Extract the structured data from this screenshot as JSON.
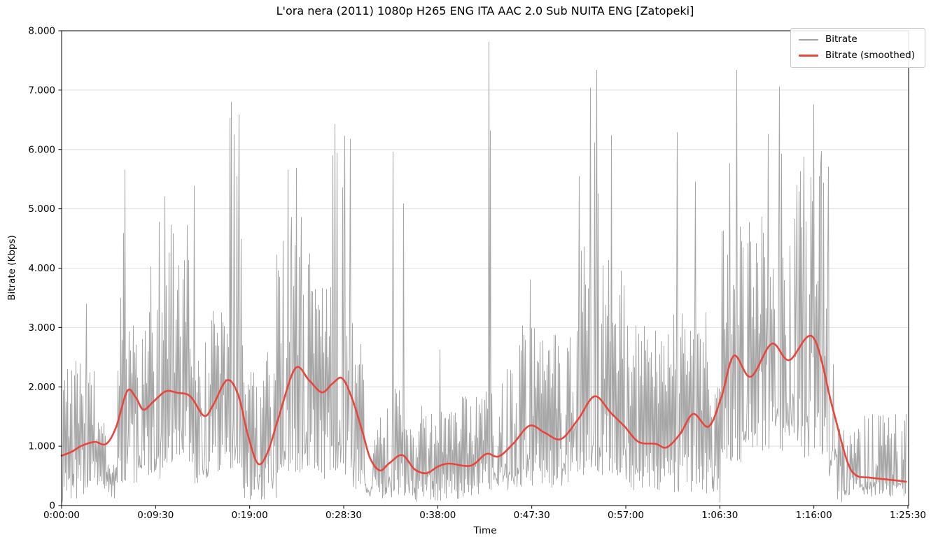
{
  "chart_data": {
    "type": "line",
    "title": "L'ora nera (2011) 1080p H265 ENG ITA AAC 2.0 Sub NUITA ENG [Zatopeki]",
    "xlabel": "Time",
    "ylabel": "Bitrate (Kbps)",
    "xlim_seconds": [
      0,
      5130
    ],
    "ylim": [
      0,
      8000
    ],
    "grid": {
      "horizontal": true,
      "vertical": false,
      "color": "#dedede"
    },
    "background": "#ffffff",
    "x_ticks": [
      {
        "seconds": 0,
        "label": "0:00:00"
      },
      {
        "seconds": 570,
        "label": "0:09:30"
      },
      {
        "seconds": 1140,
        "label": "0:19:00"
      },
      {
        "seconds": 1710,
        "label": "0:28:30"
      },
      {
        "seconds": 2280,
        "label": "0:38:00"
      },
      {
        "seconds": 2850,
        "label": "0:47:30"
      },
      {
        "seconds": 3420,
        "label": "0:57:00"
      },
      {
        "seconds": 3990,
        "label": "1:06:30"
      },
      {
        "seconds": 4560,
        "label": "1:16:00"
      },
      {
        "seconds": 5130,
        "label": "1:25:30"
      }
    ],
    "y_ticks": [
      {
        "value": 0,
        "label": "0"
      },
      {
        "value": 1000,
        "label": "1.000"
      },
      {
        "value": 2000,
        "label": "2.000"
      },
      {
        "value": 3000,
        "label": "3.000"
      },
      {
        "value": 4000,
        "label": "4.000"
      },
      {
        "value": 5000,
        "label": "5.000"
      },
      {
        "value": 6000,
        "label": "6.000"
      },
      {
        "value": 7000,
        "label": "7.000"
      },
      {
        "value": 8000,
        "label": "8.000"
      }
    ],
    "legend": {
      "position": "upper-right",
      "border_color": "#c9c9c9",
      "entries": [
        {
          "label": "Bitrate",
          "color": "#a5a5a5"
        },
        {
          "label": "Bitrate (smoothed)",
          "color": "#e8463c"
        }
      ]
    },
    "series": [
      {
        "name": "Bitrate",
        "color": "#a5a5a5",
        "line_width": 1,
        "kind": "raw-noisy",
        "envelope_windows": [
          [
            0,
            140,
            50,
            2450
          ],
          [
            140,
            200,
            250,
            2300
          ],
          [
            200,
            270,
            200,
            1400
          ],
          [
            270,
            335,
            120,
            700
          ],
          [
            335,
            480,
            350,
            3300
          ],
          [
            480,
            620,
            450,
            3300
          ],
          [
            620,
            790,
            700,
            4750
          ],
          [
            790,
            905,
            300,
            2950
          ],
          [
            905,
            1000,
            450,
            3300
          ],
          [
            1000,
            1095,
            600,
            4500
          ],
          [
            1095,
            1205,
            100,
            2300
          ],
          [
            1205,
            1300,
            100,
            2600
          ],
          [
            1300,
            1505,
            550,
            4400
          ],
          [
            1505,
            1625,
            450,
            3800
          ],
          [
            1625,
            1765,
            500,
            4800
          ],
          [
            1765,
            1845,
            200,
            3100
          ],
          [
            1845,
            1910,
            80,
            1200
          ],
          [
            1910,
            2000,
            100,
            1800
          ],
          [
            2000,
            2075,
            150,
            2000
          ],
          [
            2075,
            2165,
            60,
            1300
          ],
          [
            2165,
            2300,
            80,
            1700
          ],
          [
            2300,
            2420,
            100,
            1600
          ],
          [
            2420,
            2560,
            150,
            1900
          ],
          [
            2560,
            2640,
            200,
            2150
          ],
          [
            2640,
            2760,
            250,
            2300
          ],
          [
            2760,
            2910,
            300,
            3100
          ],
          [
            2910,
            3090,
            300,
            2900
          ],
          [
            3090,
            3420,
            500,
            4500
          ],
          [
            3420,
            3660,
            250,
            3100
          ],
          [
            3660,
            3915,
            200,
            3300
          ],
          [
            3915,
            4000,
            50,
            2000
          ],
          [
            4000,
            4185,
            600,
            4800
          ],
          [
            4185,
            4420,
            900,
            4600
          ],
          [
            4420,
            4625,
            800,
            5800
          ],
          [
            4625,
            4700,
            300,
            4200
          ],
          [
            4700,
            4825,
            30,
            1300
          ],
          [
            4825,
            5118,
            150,
            1550
          ]
        ],
        "spikes": [
          [
            150,
            3400
          ],
          [
            355,
            3500
          ],
          [
            372,
            4590
          ],
          [
            383,
            5660
          ],
          [
            540,
            4030
          ],
          [
            590,
            4780
          ],
          [
            622,
            5210
          ],
          [
            663,
            4730
          ],
          [
            710,
            4050
          ],
          [
            800,
            5390
          ],
          [
            1018,
            6530
          ],
          [
            1026,
            6800
          ],
          [
            1042,
            6250
          ],
          [
            1062,
            5550
          ],
          [
            1074,
            6590
          ],
          [
            1310,
            3960
          ],
          [
            1342,
            4460
          ],
          [
            1372,
            5660
          ],
          [
            1392,
            4860
          ],
          [
            1422,
            5690
          ],
          [
            1452,
            4860
          ],
          [
            1492,
            4060
          ],
          [
            1640,
            5900
          ],
          [
            1656,
            6430
          ],
          [
            1668,
            5940
          ],
          [
            1702,
            5360
          ],
          [
            1714,
            6230
          ],
          [
            1747,
            6180
          ],
          [
            2007,
            5960
          ],
          [
            2070,
            5090
          ],
          [
            2290,
            2630
          ],
          [
            2590,
            7810
          ],
          [
            2597,
            6320
          ],
          [
            2838,
            3810
          ],
          [
            3134,
            5550
          ],
          [
            3202,
            7040
          ],
          [
            3227,
            6120
          ],
          [
            3240,
            7340
          ],
          [
            3250,
            5260
          ],
          [
            3333,
            6240
          ],
          [
            3728,
            6290
          ],
          [
            3838,
            5460
          ],
          [
            4050,
            5770
          ],
          [
            4092,
            7340
          ],
          [
            4112,
            4700
          ],
          [
            4242,
            4870
          ],
          [
            4280,
            6260
          ],
          [
            4350,
            7060
          ],
          [
            4362,
            5930
          ],
          [
            4454,
            5400
          ],
          [
            4496,
            5880
          ],
          [
            4558,
            6760
          ],
          [
            4602,
            5970
          ],
          [
            4645,
            5710
          ]
        ]
      },
      {
        "name": "Bitrate (smoothed)",
        "color": "#e8463c",
        "line_width": 2.6,
        "kind": "smoothed",
        "points": [
          [
            0,
            840
          ],
          [
            60,
            905
          ],
          [
            120,
            1005
          ],
          [
            200,
            1072
          ],
          [
            270,
            1038
          ],
          [
            330,
            1320
          ],
          [
            398,
            1930
          ],
          [
            450,
            1820
          ],
          [
            496,
            1615
          ],
          [
            560,
            1760
          ],
          [
            631,
            1925
          ],
          [
            700,
            1900
          ],
          [
            780,
            1840
          ],
          [
            864,
            1510
          ],
          [
            920,
            1700
          ],
          [
            1001,
            2110
          ],
          [
            1068,
            1884
          ],
          [
            1130,
            1180
          ],
          [
            1191,
            705
          ],
          [
            1250,
            905
          ],
          [
            1315,
            1480
          ],
          [
            1416,
            2310
          ],
          [
            1500,
            2110
          ],
          [
            1577,
            1908
          ],
          [
            1640,
            2050
          ],
          [
            1700,
            2145
          ],
          [
            1760,
            1810
          ],
          [
            1823,
            1250
          ],
          [
            1870,
            800
          ],
          [
            1929,
            592
          ],
          [
            1985,
            710
          ],
          [
            2065,
            850
          ],
          [
            2140,
            610
          ],
          [
            2213,
            545
          ],
          [
            2280,
            655
          ],
          [
            2350,
            707
          ],
          [
            2480,
            672
          ],
          [
            2574,
            870
          ],
          [
            2650,
            828
          ],
          [
            2740,
            1050
          ],
          [
            2837,
            1345
          ],
          [
            2930,
            1225
          ],
          [
            3027,
            1120
          ],
          [
            3130,
            1450
          ],
          [
            3231,
            1840
          ],
          [
            3330,
            1560
          ],
          [
            3413,
            1330
          ],
          [
            3498,
            1072
          ],
          [
            3600,
            1040
          ],
          [
            3668,
            980
          ],
          [
            3750,
            1210
          ],
          [
            3829,
            1545
          ],
          [
            3922,
            1330
          ],
          [
            4000,
            1830
          ],
          [
            4075,
            2525
          ],
          [
            4177,
            2170
          ],
          [
            4304,
            2725
          ],
          [
            4410,
            2450
          ],
          [
            4554,
            2840
          ],
          [
            4673,
            1650
          ],
          [
            4758,
            780
          ],
          [
            4813,
            515
          ],
          [
            4898,
            470
          ],
          [
            5042,
            428
          ],
          [
            5118,
            402
          ]
        ]
      }
    ]
  }
}
